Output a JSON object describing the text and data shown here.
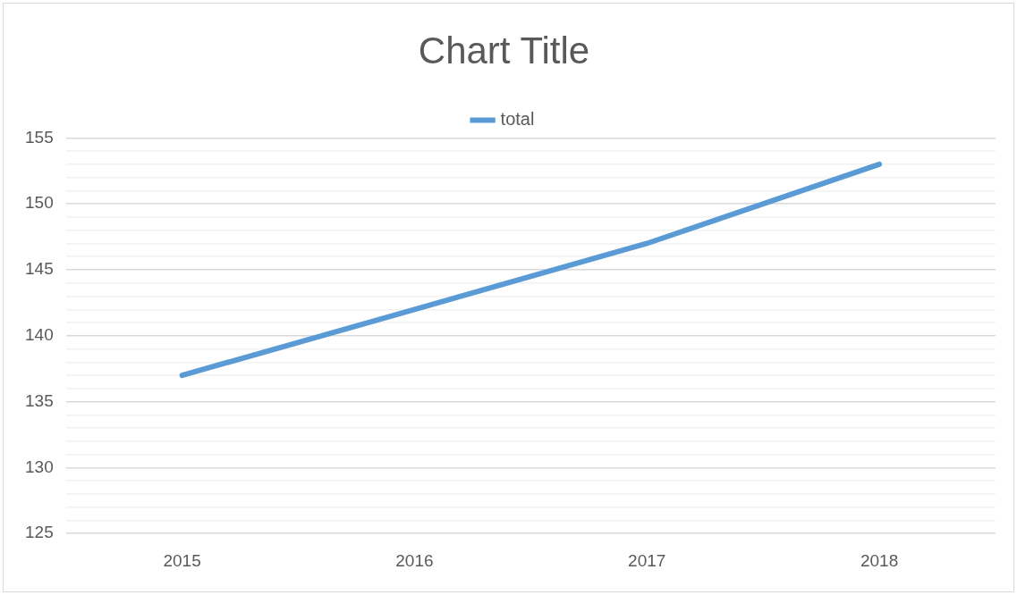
{
  "chart_data": {
    "type": "line",
    "title": "Chart Title",
    "categories": [
      "2015",
      "2016",
      "2017",
      "2018"
    ],
    "series": [
      {
        "name": "total",
        "color": "#5b9bd5",
        "values": [
          137,
          142,
          147,
          153
        ]
      }
    ],
    "ylim": [
      125,
      155
    ],
    "yticks": [
      125,
      {
        "value": 126,
        "label": null
      },
      {
        "value": 127,
        "label": null
      },
      {
        "value": 128,
        "label": null
      },
      {
        "value": 129,
        "label": null
      },
      130,
      {
        "value": 131,
        "label": null
      },
      {
        "value": 132,
        "label": null
      },
      {
        "value": 133,
        "label": null
      },
      {
        "value": 134,
        "label": null
      },
      135,
      {
        "value": 136,
        "label": null
      },
      {
        "value": 137,
        "label": null
      },
      {
        "value": 138,
        "label": null
      },
      {
        "value": 139,
        "label": null
      },
      140,
      {
        "value": 141,
        "label": null
      },
      {
        "value": 142,
        "label": null
      },
      {
        "value": 143,
        "label": null
      },
      {
        "value": 144,
        "label": null
      },
      145,
      {
        "value": 146,
        "label": null
      },
      {
        "value": 147,
        "label": null
      },
      {
        "value": 148,
        "label": null
      },
      {
        "value": 149,
        "label": null
      },
      150,
      {
        "value": 151,
        "label": null
      },
      {
        "value": 152,
        "label": null
      },
      {
        "value": 153,
        "label": null
      },
      {
        "value": 154,
        "label": null
      },
      155
    ],
    "grid": "y",
    "legend": "top",
    "marker": "none",
    "line_style": "solid"
  }
}
